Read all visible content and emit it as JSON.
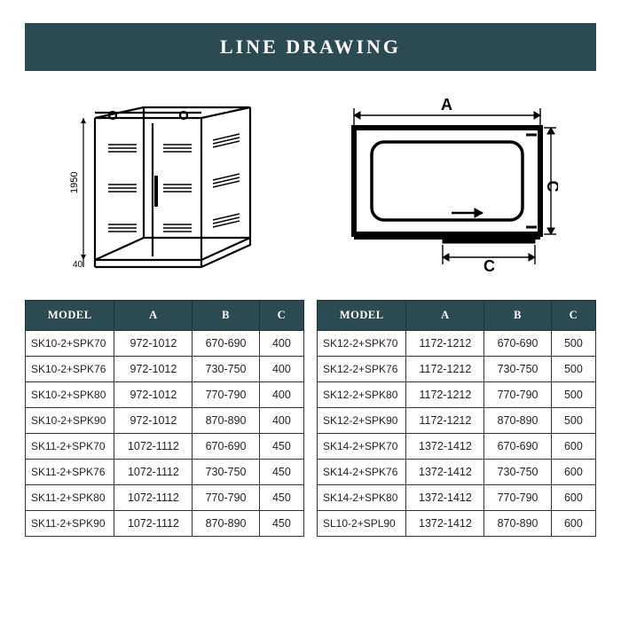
{
  "title": "LINE DRAWING",
  "colors": {
    "header_bg": "#2c4a52",
    "header_fg": "#ffffff",
    "cell_border": "#333333",
    "text": "#222222",
    "page_bg": "#ffffff"
  },
  "diagram_left": {
    "height_label": "1950",
    "base_label": "40"
  },
  "diagram_right": {
    "label_top": "A",
    "label_right": "C",
    "label_bottom": "C"
  },
  "table": {
    "headers": [
      "MODEL",
      "A",
      "B",
      "C"
    ]
  },
  "left_rows": [
    {
      "model": "SK10-2+SPK70",
      "a": "972-1012",
      "b": "670-690",
      "c": "400"
    },
    {
      "model": "SK10-2+SPK76",
      "a": "972-1012",
      "b": "730-750",
      "c": "400"
    },
    {
      "model": "SK10-2+SPK80",
      "a": "972-1012",
      "b": "770-790",
      "c": "400"
    },
    {
      "model": "SK10-2+SPK90",
      "a": "972-1012",
      "b": "870-890",
      "c": "400"
    },
    {
      "model": "SK11-2+SPK70",
      "a": "1072-1112",
      "b": "670-690",
      "c": "450"
    },
    {
      "model": "SK11-2+SPK76",
      "a": "1072-1112",
      "b": "730-750",
      "c": "450"
    },
    {
      "model": "SK11-2+SPK80",
      "a": "1072-1112",
      "b": "770-790",
      "c": "450"
    },
    {
      "model": "SK11-2+SPK90",
      "a": "1072-1112",
      "b": "870-890",
      "c": "450"
    }
  ],
  "right_rows": [
    {
      "model": "SK12-2+SPK70",
      "a": "1172-1212",
      "b": "670-690",
      "c": "500"
    },
    {
      "model": "SK12-2+SPK76",
      "a": "1172-1212",
      "b": "730-750",
      "c": "500"
    },
    {
      "model": "SK12-2+SPK80",
      "a": "1172-1212",
      "b": "770-790",
      "c": "500"
    },
    {
      "model": "SK12-2+SPK90",
      "a": "1172-1212",
      "b": "870-890",
      "c": "500"
    },
    {
      "model": "SK14-2+SPK70",
      "a": "1372-1412",
      "b": "670-690",
      "c": "600"
    },
    {
      "model": "SK14-2+SPK76",
      "a": "1372-1412",
      "b": "730-750",
      "c": "600"
    },
    {
      "model": "SK14-2+SPK80",
      "a": "1372-1412",
      "b": "770-790",
      "c": "600"
    },
    {
      "model": "SL10-2+SPL90",
      "a": "1372-1412",
      "b": "870-890",
      "c": "600"
    }
  ]
}
